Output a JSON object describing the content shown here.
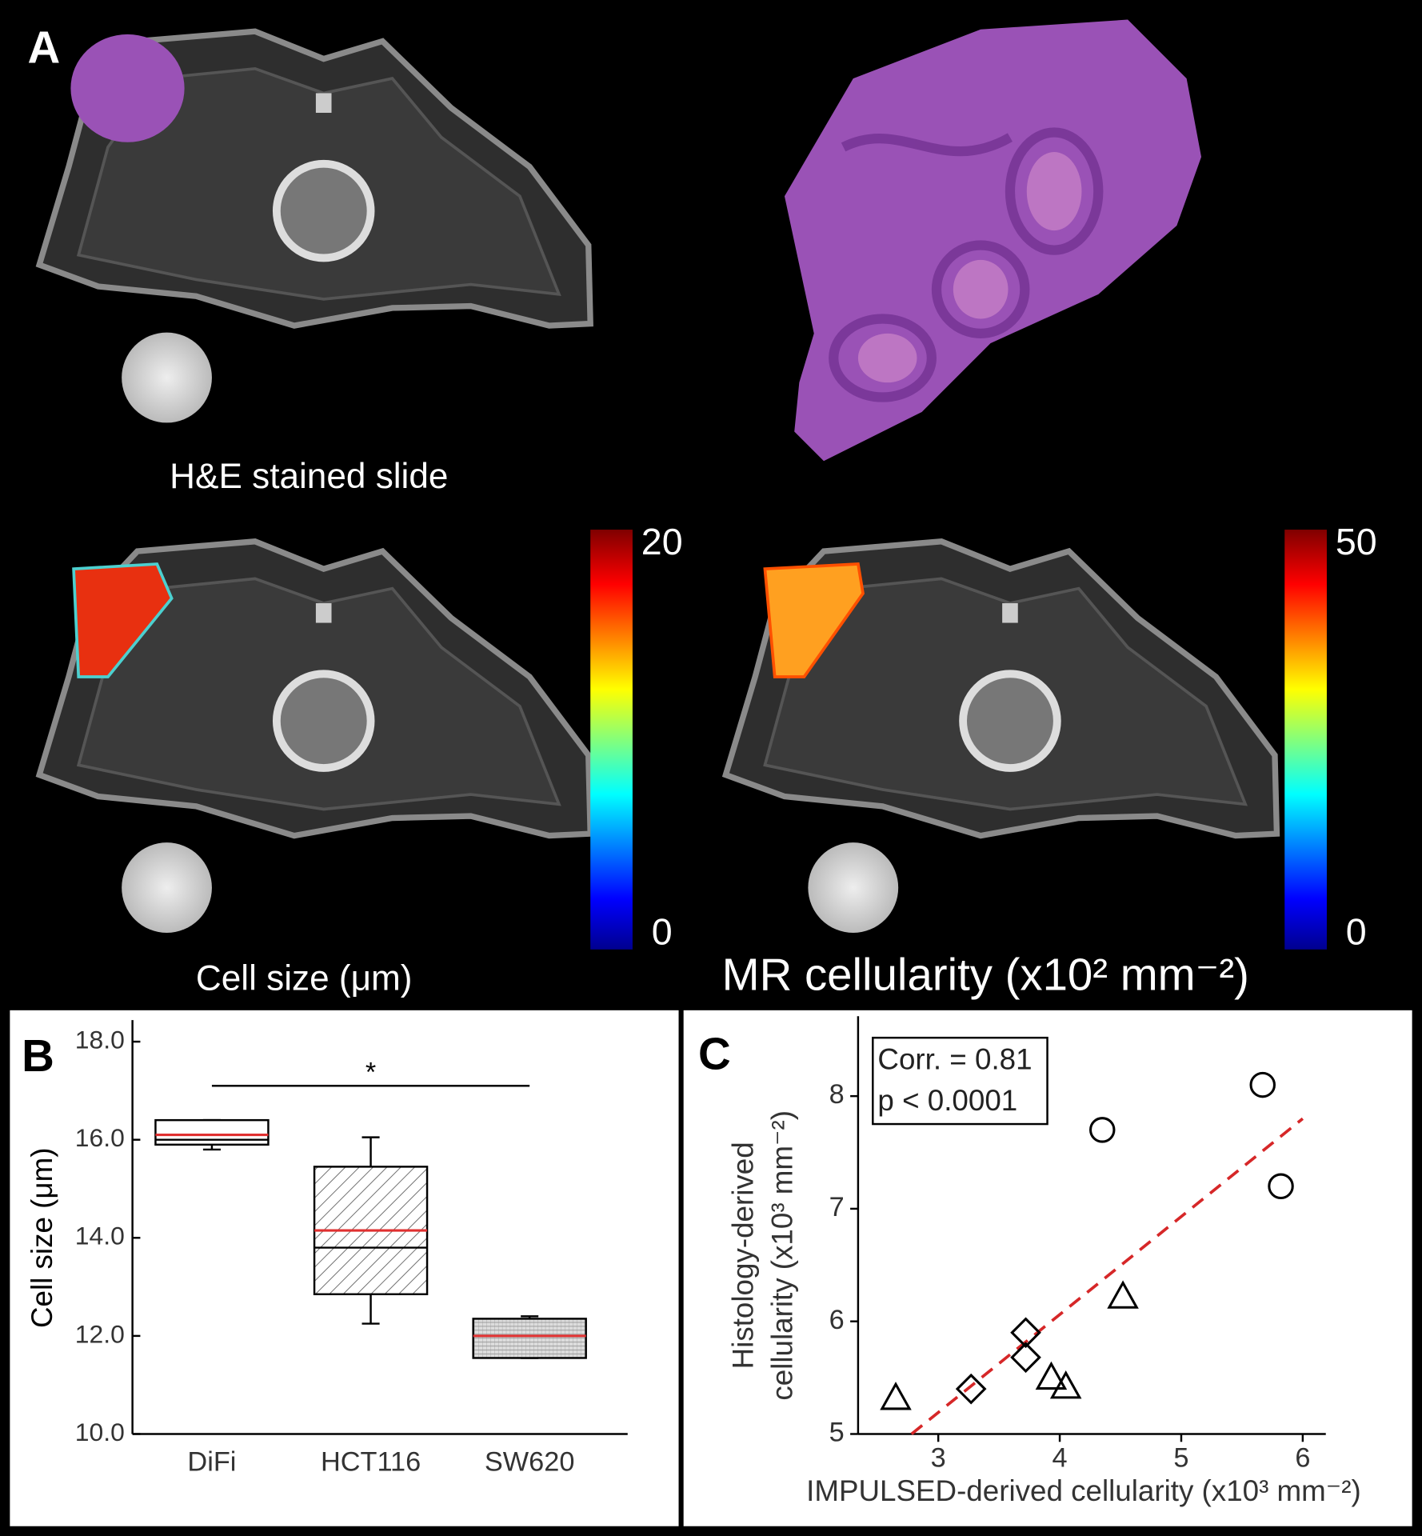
{
  "panel_a": {
    "panel_label": "A",
    "captions": [
      "H&E stained slide",
      "Cell size (μm)",
      "MR cellularity (x10² mm⁻²)"
    ],
    "colorbars": [
      {
        "ylim": [
          0,
          20
        ],
        "yticks": [
          0,
          20
        ]
      },
      {
        "ylim": [
          0,
          50
        ],
        "yticks": [
          0,
          50
        ]
      }
    ]
  },
  "chart_data": [
    {
      "type": "box",
      "panel_label": "B",
      "ylabel": "Cell size (μm)",
      "categories": [
        "DiFi",
        "HCT116",
        "SW620"
      ],
      "min": [
        15.8,
        12.25,
        11.55
      ],
      "q1": [
        15.9,
        12.85,
        11.55
      ],
      "median": [
        16.0,
        13.8,
        12.0
      ],
      "q3": [
        16.4,
        15.45,
        12.35
      ],
      "max": [
        16.4,
        16.05,
        12.4
      ],
      "mean": [
        16.1,
        14.15,
        12.0
      ],
      "mean_color": "#e03030",
      "ylim": [
        10,
        18
      ],
      "yticks": [
        {
          "value": 10,
          "label": "10.0"
        },
        {
          "value": 12,
          "label": "12.0"
        },
        {
          "value": 14,
          "label": "14.0"
        },
        {
          "value": 16,
          "label": "16.0"
        },
        {
          "value": 18,
          "label": "18.0"
        }
      ],
      "significance": {
        "label": "*",
        "y": 17.1
      }
    },
    {
      "type": "scatter",
      "panel_label": "C",
      "xlabel": "IMPULSED-derived cellularity (x10³ mm⁻²)",
      "ylabel": [
        "Histology-derived",
        "cellularity (x10³ mm⁻²)"
      ],
      "xlim": [
        2.34,
        6.19
      ],
      "ylim": [
        5,
        8.71
      ],
      "xticks": [
        3,
        4,
        5,
        6
      ],
      "yticks": [
        5,
        6,
        7,
        8
      ],
      "series": [
        {
          "marker": "circle",
          "color": "#000000",
          "x": [
            4.35,
            5.67,
            5.82
          ],
          "values": [
            7.7,
            8.1,
            7.2
          ]
        },
        {
          "marker": "triangle",
          "color": "#000000",
          "x": [
            2.65,
            4.52,
            3.93,
            4.05
          ],
          "values": [
            5.32,
            6.22,
            5.5,
            5.42
          ]
        },
        {
          "marker": "diamond",
          "color": "#000000",
          "x": [
            3.72,
            3.72,
            3.27
          ],
          "values": [
            5.9,
            5.68,
            5.4
          ]
        }
      ],
      "fit": {
        "x": [
          2.78,
          6.0
        ],
        "values": [
          5.0,
          7.8
        ],
        "color": "#d62728"
      },
      "annotation": [
        "Corr. = 0.81",
        "p < 0.0001"
      ]
    }
  ]
}
